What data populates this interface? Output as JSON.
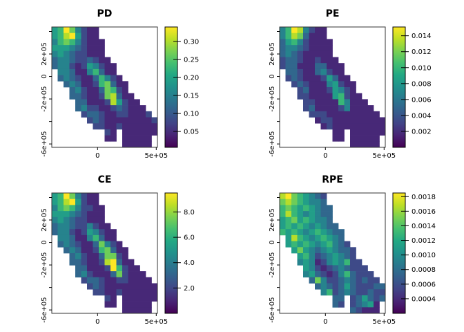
{
  "figure_background": "#ffffff",
  "chart_data": {
    "type": "heatmap",
    "layout_hint": "2x2 grid of raster maps of California (projected coords), each with vertical viridis color legend on right",
    "grid_cols": 18,
    "grid_rows": 20,
    "no_data_char": ".",
    "value_scale_note": "cell digits 1-9 map linearly onto each panel's legend range (1=darkest, 9=yellow max)",
    "x_range": [
      -390000,
      510000
    ],
    "y_range": [
      -630000,
      440000
    ],
    "x_ticks": [
      {
        "label": "0",
        "value": 0
      },
      {
        "label": "5e+05",
        "value": 500000
      }
    ],
    "y_ticks": [
      {
        "label": "",
        "value": 400000
      },
      {
        "label": "2e+05",
        "value": 200000
      },
      {
        "label": "0",
        "value": 0
      },
      {
        "label": "-2e+05",
        "value": -200000
      },
      {
        "label": "",
        "value": -400000
      },
      {
        "label": "-6e+05",
        "value": -600000
      }
    ],
    "colormap": {
      "name": "viridis",
      "stops": [
        "#440154",
        "#482475",
        "#414487",
        "#355f8d",
        "#2a788e",
        "#21918c",
        "#22a884",
        "#44bf70",
        "#7ad151",
        "#bddf26",
        "#fde725"
      ]
    },
    "panels": [
      {
        "title": "PD",
        "zmin": 0.006,
        "zmax": 0.34,
        "legend_values": [
          0.05,
          0.1,
          0.15,
          0.2,
          0.25,
          0.3
        ],
        "legend_labels": [
          "0.05",
          "0.10",
          "0.15",
          "0.20",
          "0.25",
          "0.30"
        ],
        "cells": [
          "56974211..........",
          "56895211..........",
          "467642111.........",
          "555432111.........",
          "454322111.........",
          "3443223211........",
          "34421254211.......",
          ".4431146311.......",
          ".34321136421......",
          "..34311267311.....",
          "...3421137621.....",
          "...33211278311....",
          "....33111285211...",
          "....342211232111..",
          ".....233211221112.",
          "......232111111112",
          ".......22112111111",
          ".........21.111111",
          ".........11.11111.",
          "............11111."
        ]
      },
      {
        "title": "PE",
        "zmin": 0.0,
        "zmax": 0.0151,
        "legend_values": [
          0.002,
          0.004,
          0.006,
          0.008,
          0.01,
          0.012,
          0.014
        ],
        "legend_labels": [
          "0.002",
          "0.004",
          "0.006",
          "0.008",
          "0.010",
          "0.012",
          "0.014"
        ],
        "cells": [
          "46984211..........",
          "46873111..........",
          "356421111.........",
          "344321111.........",
          "343211111.........",
          "2332112111........",
          "23311133111.......",
          ".3321134211.......",
          ".23211125311......",
          "..23211145211.....",
          "...2311125421.....",
          "...22111156211....",
          "....22111164111...",
          "....231111241111..",
          ".....222111111111.",
          "......122111111111",
          ".......12111111111",
          ".........11.111111",
          ".........11.11111.",
          "............11111."
        ]
      },
      {
        "title": "CE",
        "zmin": 0.0,
        "zmax": 9.5,
        "legend_values": [
          2.0,
          4.0,
          6.0,
          8.0
        ],
        "legend_labels": [
          "2.0",
          "4.0",
          "6.0",
          "8.0"
        ],
        "cells": [
          "56974211..........",
          "56895211..........",
          "467642211.........",
          "555432111.........",
          "454322111.........",
          "3443224211........",
          "34421254211.......",
          ".4431146311.......",
          ".34321137421......",
          "..34311267311.....",
          "...3421137721.....",
          "...33211289311....",
          "....33111296211...",
          "....342111372111..",
          ".....233211221111.",
          "......232111111111",
          ".......22112111111",
          ".........21.111111",
          ".........11.11111.",
          "............11111."
        ]
      },
      {
        "title": "RPE",
        "zmin": 0.0002,
        "zmax": 0.00185,
        "legend_values": [
          0.0004,
          0.0006,
          0.0008,
          0.001,
          0.0012,
          0.0014,
          0.0016,
          0.0018
        ],
        "legend_labels": [
          "0.0004",
          "0.0006",
          "0.0008",
          "0.0010",
          "0.0012",
          "0.0014",
          "0.0016",
          "0.0018"
        ],
        "cells": [
          "89765432..........",
          "78765443..........",
          "676565433.........",
          "686545433.........",
          "567565443.........",
          "5656545433........",
          "65654565433.......",
          ".5865456543.......",
          ".56565456432......",
          "..57543454332.....",
          "...5642345432.....",
          "...45412454622....",
          "....54212343222...",
          "....453212463222..",
          ".....374223432322.",
          "......343235322233",
          ".......46234322322",
          ".........33.235323",
          ".........32.23451.",
          "............32111."
        ]
      }
    ]
  }
}
